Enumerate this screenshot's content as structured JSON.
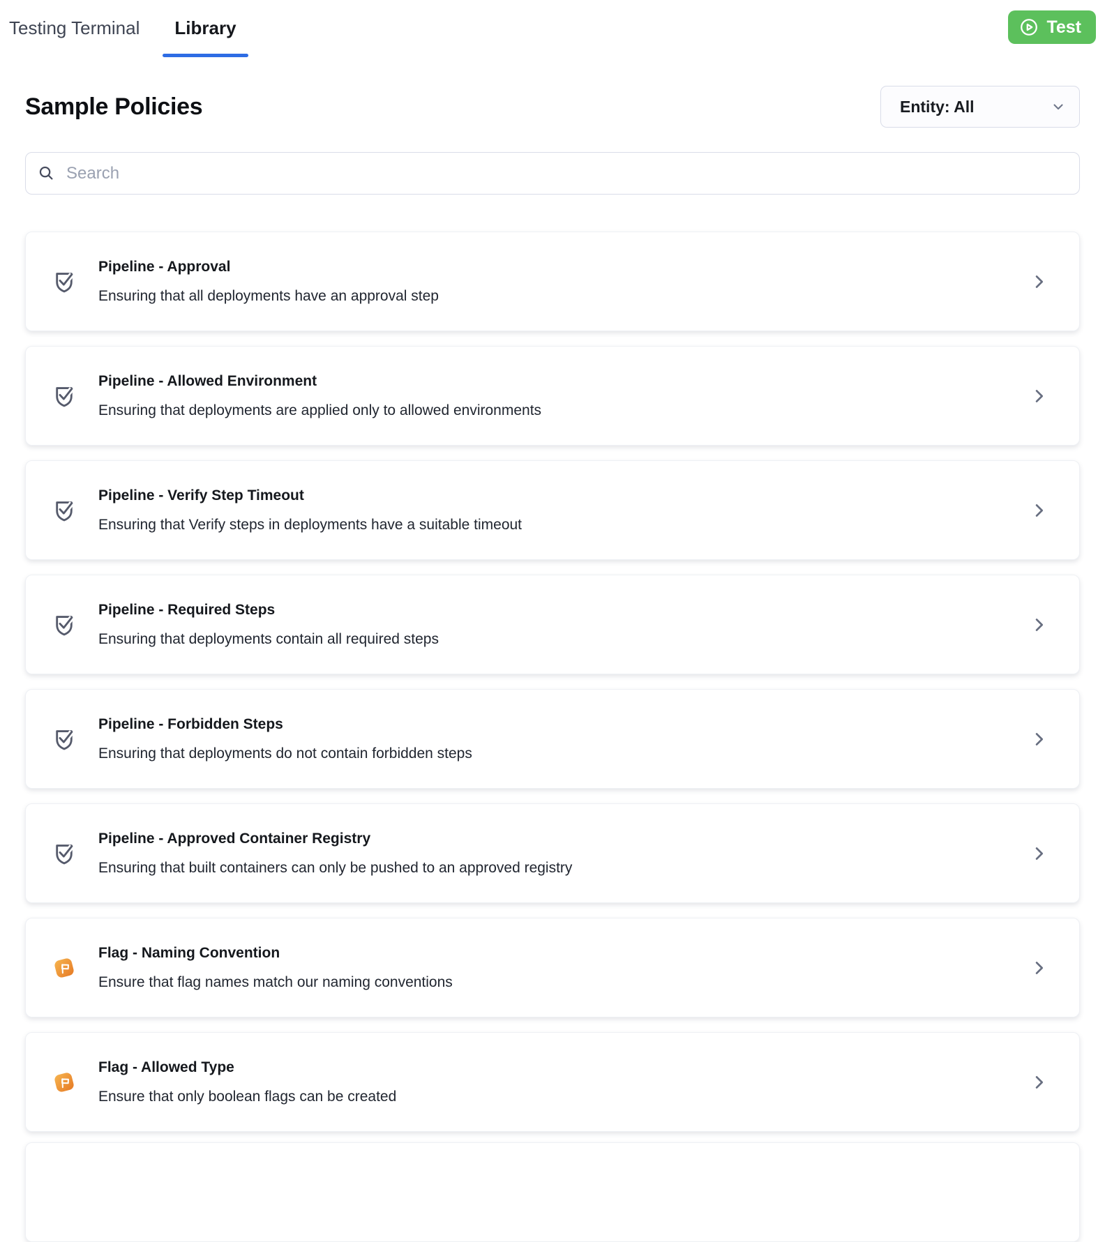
{
  "tabs": [
    {
      "label": "Testing Terminal",
      "active": false
    },
    {
      "label": "Library",
      "active": true
    }
  ],
  "test_button": {
    "label": "Test",
    "icon": "play-circle-icon"
  },
  "page": {
    "title": "Sample Policies"
  },
  "entity_filter": {
    "value": "Entity: All",
    "icon": "chevron-down-icon"
  },
  "search": {
    "placeholder": "Search",
    "icon": "search-icon"
  },
  "policies": [
    {
      "icon": "shield-check-icon",
      "title": "Pipeline - Approval",
      "description": "Ensuring that all deployments have an approval step"
    },
    {
      "icon": "shield-check-icon",
      "title": "Pipeline - Allowed Environment",
      "description": "Ensuring that deployments are applied only to allowed environments"
    },
    {
      "icon": "shield-check-icon",
      "title": "Pipeline - Verify Step Timeout",
      "description": "Ensuring that Verify steps in deployments have a suitable timeout"
    },
    {
      "icon": "shield-check-icon",
      "title": "Pipeline - Required Steps",
      "description": "Ensuring that deployments contain all required steps"
    },
    {
      "icon": "shield-check-icon",
      "title": "Pipeline - Forbidden Steps",
      "description": "Ensuring that deployments do not contain forbidden steps"
    },
    {
      "icon": "shield-check-icon",
      "title": "Pipeline - Approved Container Registry",
      "description": "Ensuring that built containers can only be pushed to an approved registry"
    },
    {
      "icon": "flag-icon",
      "title": "Flag - Naming Convention",
      "description": "Ensure that flag names match our naming conventions"
    },
    {
      "icon": "flag-icon",
      "title": "Flag - Allowed Type",
      "description": "Ensure that only boolean flags can be created"
    }
  ],
  "colors": {
    "accent_blue": "#2d6ce4",
    "test_green": "#5cc05c",
    "flag_orange_start": "#f6b44f",
    "flag_orange_end": "#e8812a",
    "icon_slate": "#555a6b"
  }
}
